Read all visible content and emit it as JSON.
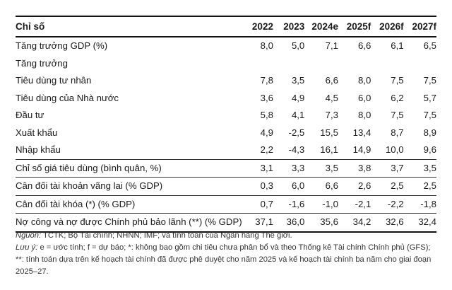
{
  "table": {
    "header": {
      "label": "Chỉ số",
      "years": [
        "2022",
        "2023",
        "2024e",
        "2025f",
        "2026f",
        "2027f"
      ]
    },
    "rows": [
      {
        "label": "Tăng trưởng GDP (%)",
        "values": [
          "8,0",
          "5,0",
          "7,1",
          "6,6",
          "6,1",
          "6,5"
        ]
      },
      {
        "label": "Tăng trưởng",
        "values": [
          "",
          "",
          "",
          "",
          "",
          ""
        ]
      },
      {
        "label": "Tiêu dùng tư nhân",
        "values": [
          "7,8",
          "3,5",
          "6,6",
          "8,0",
          "7,5",
          "7,5"
        ]
      },
      {
        "label": "Tiêu dùng của Nhà nước",
        "values": [
          "3,6",
          "4,9",
          "4,5",
          "6,0",
          "6,2",
          "5,7"
        ]
      },
      {
        "label": "Đầu tư",
        "values": [
          "5,8",
          "4,1",
          "7,3",
          "8,0",
          "7,5",
          "7,5"
        ]
      },
      {
        "label": "Xuất khẩu",
        "values": [
          "4,9",
          "-2,5",
          "15,5",
          "13,4",
          "8,7",
          "8,9"
        ]
      },
      {
        "label": "Nhập khẩu",
        "values": [
          "2,2",
          "-4,3",
          "16,1",
          "14,9",
          "10,0",
          "9,6"
        ]
      },
      {
        "label": "Chỉ số giá tiêu dùng (bình quân, %)",
        "values": [
          "3,1",
          "3,3",
          "3,5",
          "3,8",
          "3,7",
          "3,5"
        ]
      },
      {
        "label": "Cân đối tài khoản vãng lai (% GDP)",
        "values": [
          "0,3",
          "6,0",
          "6,6",
          "2,6",
          "2,5",
          "2,5"
        ]
      },
      {
        "label": "Cân đối tài khóa (*) (% GDP)",
        "values": [
          "0,7",
          "-1,6",
          "-1,0",
          "-2,1",
          "-2,2",
          "-1,8"
        ]
      },
      {
        "label": "Nợ công và nợ được Chính phủ bảo lãnh (**) (% GDP)",
        "values": [
          "37,1",
          "36,0",
          "35,6",
          "34,2",
          "32,6",
          "32,4"
        ]
      }
    ]
  },
  "notes": {
    "source_label": "Nguồn:",
    "source_text": " TCTK; Bộ Tài chính; NHNN; IMF; và tính toán của Ngân hàng Thế giới.",
    "note_label": "Lưu ý:",
    "note_text": " e = ước tính; f = dự báo; *: không bao gồm chi tiêu chưa phân bổ và theo Thống kê Tài chính Chính phủ (GFS); **: tính toán dựa trên kế hoạch tài chính đã được phê duyệt cho năm 2025 và kế hoạch tài chính ba năm cho giai đoạn 2025–27."
  }
}
